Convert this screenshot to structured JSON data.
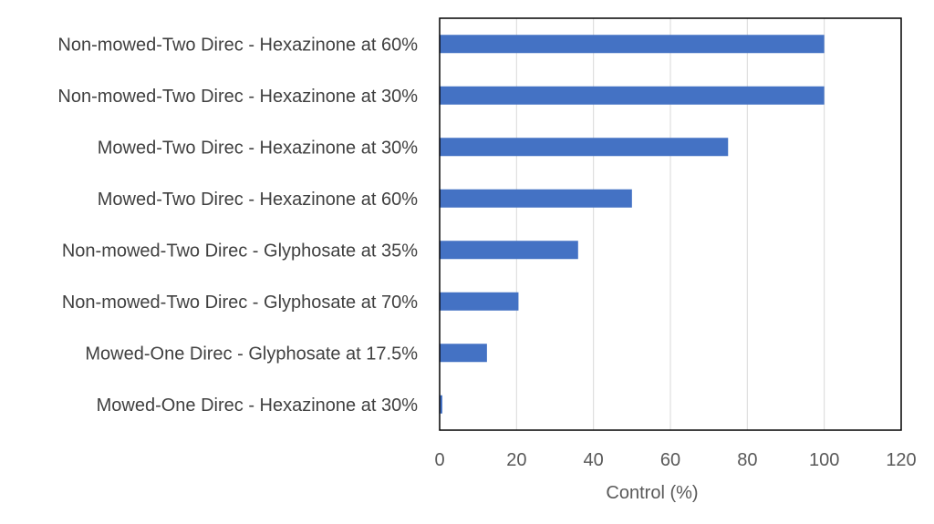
{
  "chart_data": {
    "type": "bar",
    "orientation": "horizontal",
    "categories": [
      "Non-mowed-Two Direc - Hexazinone at 60%",
      "Non-mowed-Two Direc - Hexazinone at 30%",
      "Mowed-Two Direc - Hexazinone at 30%",
      "Mowed-Two Direc - Hexazinone at 60%",
      "Non-mowed-Two Direc - Glyphosate at 35%",
      "Non-mowed-Two Direc - Glyphosate at 70%",
      "Mowed-One Direc - Glyphosate at 17.5%",
      "Mowed-One Direc - Hexazinone at 30%"
    ],
    "values": [
      100,
      100,
      75,
      50,
      36,
      20.5,
      12.3,
      0.7
    ],
    "title": "",
    "xlabel": "Control (%)",
    "ylabel": "",
    "xlim": [
      0,
      120
    ],
    "xticks": [
      "0",
      "20",
      "40",
      "60",
      "80",
      "100",
      "120"
    ],
    "grid": "vertical",
    "legend": "none",
    "bar_color": "#4472C4",
    "grid_color": "#D9D9D9",
    "frame_color": "#000000"
  }
}
